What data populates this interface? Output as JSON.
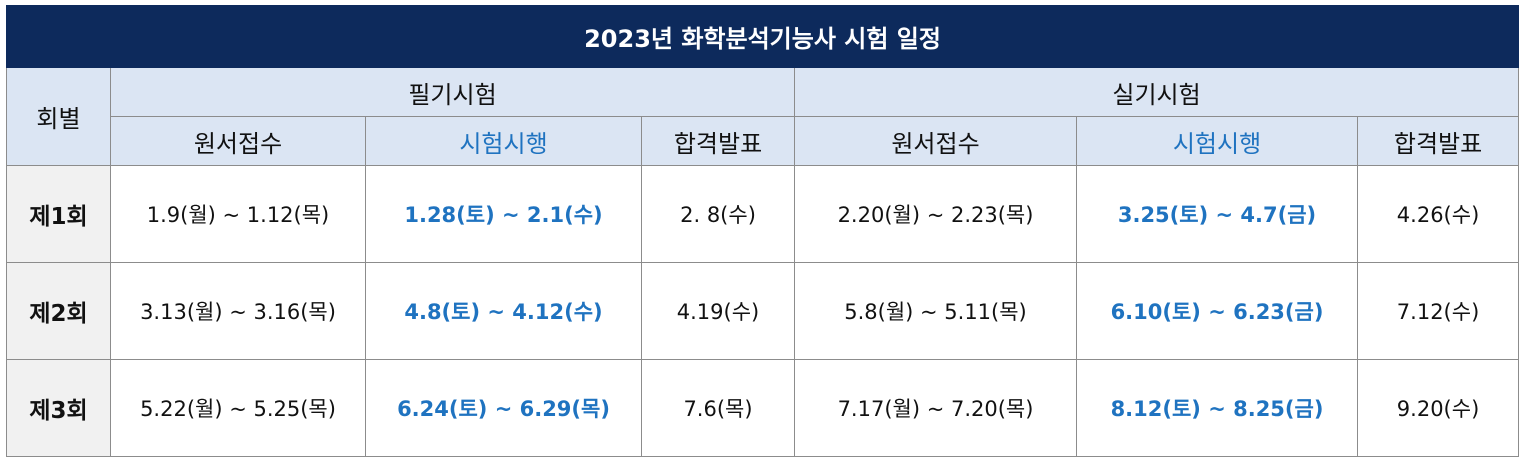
{
  "title": "2023년 화학분석기능사 시험 일정",
  "header": {
    "round": "회별",
    "written": "필기시험",
    "practical": "실기시험",
    "sub": {
      "apply": "원서접수",
      "exam": "시험시행",
      "result": "합격발표"
    }
  },
  "colors": {
    "title_bg": "#0d2a5c",
    "header_bg": "#dbe5f3",
    "exam_text": "#1f73c0",
    "round_bg": "#f1f1f1"
  },
  "rows": [
    {
      "round": "제1회",
      "written_apply": "1.9(월) ~ 1.12(목)",
      "written_exam": "1.28(토) ~ 2.1(수)",
      "written_result": "2. 8(수)",
      "practical_apply": "2.20(월) ~ 2.23(목)",
      "practical_exam": "3.25(토) ~ 4.7(금)",
      "practical_result": "4.26(수)"
    },
    {
      "round": "제2회",
      "written_apply": "3.13(월) ~ 3.16(목)",
      "written_exam": "4.8(토) ~ 4.12(수)",
      "written_result": "4.19(수)",
      "practical_apply": "5.8(월) ~ 5.11(목)",
      "practical_exam": "6.10(토) ~ 6.23(금)",
      "practical_result": "7.12(수)"
    },
    {
      "round": "제3회",
      "written_apply": "5.22(월) ~ 5.25(목)",
      "written_exam": "6.24(토) ~ 6.29(목)",
      "written_result": "7.6(목)",
      "practical_apply": "7.17(월) ~ 7.20(목)",
      "practical_exam": "8.12(토) ~ 8.25(금)",
      "practical_result": "9.20(수)"
    }
  ]
}
